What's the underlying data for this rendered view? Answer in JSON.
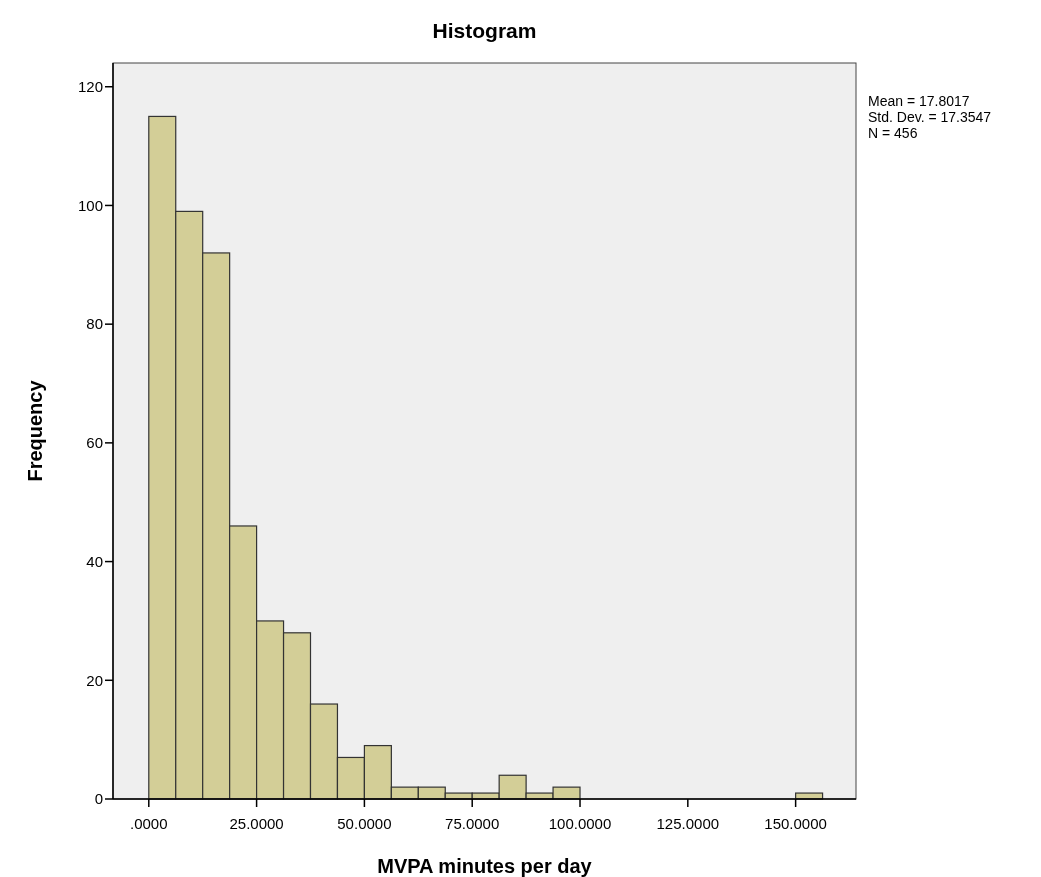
{
  "chart_data": {
    "type": "histogram",
    "title": "Histogram",
    "xlabel": "MVPA minutes per day",
    "ylabel": "Frequency",
    "bins": [
      0,
      6.25,
      12.5,
      18.75,
      25,
      31.25,
      37.5,
      43.75,
      50,
      56.25,
      62.5,
      68.75,
      75,
      81.25,
      87.5,
      93.75,
      100,
      106.25,
      112.5,
      118.75,
      125,
      131.25,
      137.5,
      143.75,
      150,
      156.25
    ],
    "values": [
      115,
      99,
      92,
      46,
      30,
      28,
      16,
      7,
      9,
      2,
      2,
      1,
      1,
      4,
      1,
      2,
      0,
      0,
      0,
      0,
      0,
      0,
      0,
      0,
      1
    ],
    "color": "#d3ce97",
    "xlim": [
      -8.3,
      164
    ],
    "xticks": [
      {
        "value": 0,
        "label": ".0000"
      },
      {
        "value": 25,
        "label": "25.0000"
      },
      {
        "value": 50,
        "label": "50.0000"
      },
      {
        "value": 75,
        "label": "75.0000"
      },
      {
        "value": 100,
        "label": "100.0000"
      },
      {
        "value": 125,
        "label": "125.0000"
      },
      {
        "value": 150,
        "label": "150.0000"
      }
    ],
    "ylim": [
      0,
      124
    ],
    "yticks": [
      0,
      20,
      40,
      60,
      80,
      100,
      120
    ],
    "grid": false,
    "annotations": [
      "Mean = 17.8017",
      "Std. Dev. = 17.3547",
      "N = 456"
    ]
  }
}
